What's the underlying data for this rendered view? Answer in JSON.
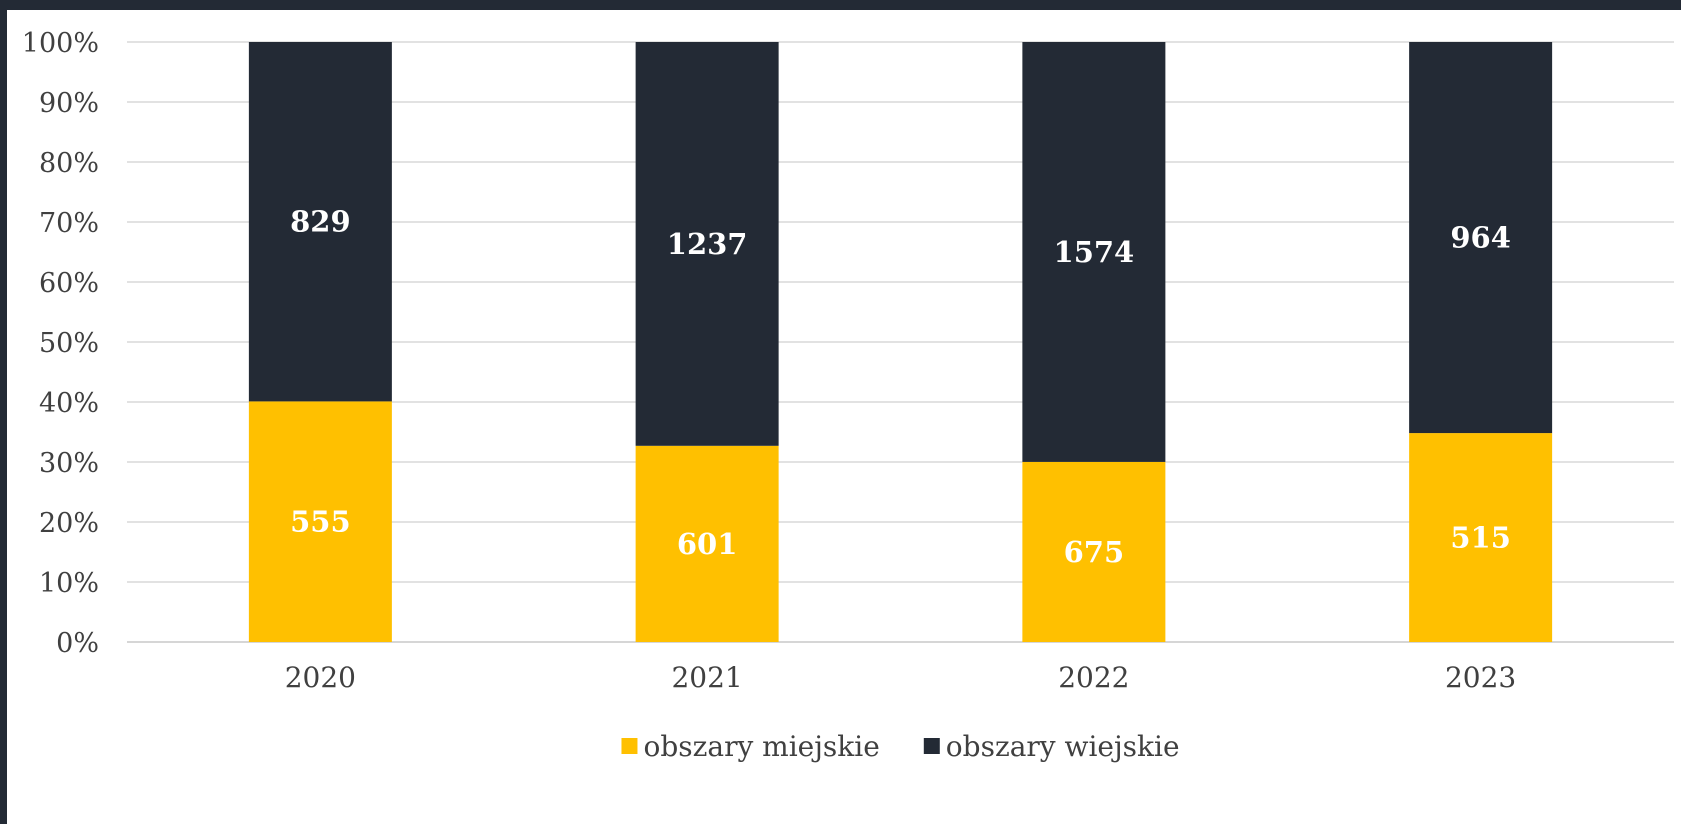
{
  "chart_data": {
    "type": "bar",
    "stacked": "percent",
    "categories": [
      "2020",
      "2021",
      "2022",
      "2023"
    ],
    "series": [
      {
        "name": "obszary miejskie",
        "values": [
          555,
          601,
          675,
          515
        ],
        "color": "#FFC000"
      },
      {
        "name": "obszary wiejskie",
        "values": [
          829,
          1237,
          1574,
          964
        ],
        "color": "#232A35"
      }
    ],
    "y_ticks": [
      "0%",
      "10%",
      "20%",
      "30%",
      "40%",
      "50%",
      "60%",
      "70%",
      "80%",
      "90%",
      "100%"
    ],
    "ylim": [
      0,
      100
    ],
    "grid": true,
    "legend": "bottom-center",
    "data_labels": "value"
  }
}
